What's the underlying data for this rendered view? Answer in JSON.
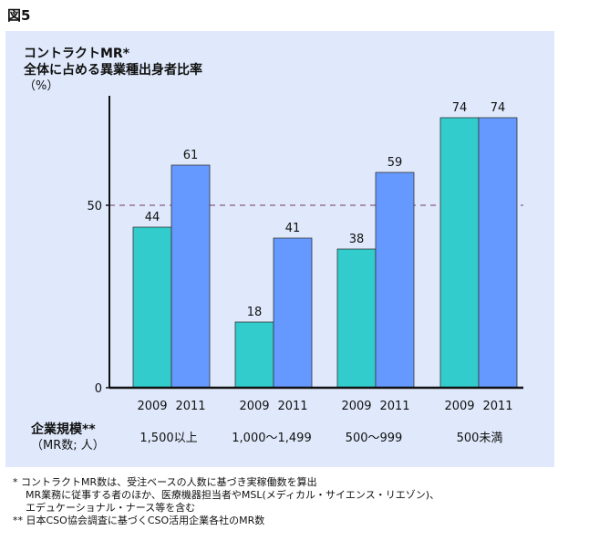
{
  "figure_label": "図5",
  "title": {
    "line1": "コントラクトMR*",
    "line2": "全体に占める異業種出身者比率",
    "unit": "（%）"
  },
  "chart_data": {
    "type": "bar",
    "categories": [
      "1,500以上",
      "1,000～1,499",
      "500～999",
      "500未満"
    ],
    "x_tick_labels": [
      "2009",
      "2011"
    ],
    "series": [
      {
        "name": "2009",
        "values": [
          44,
          18,
          38,
          74
        ]
      },
      {
        "name": "2011",
        "values": [
          61,
          41,
          59,
          74
        ]
      }
    ],
    "y_ticks": [
      0,
      50
    ],
    "ylim": [
      0,
      74
    ],
    "reference_line": 50,
    "colors": {
      "series_2009": "#33cccc",
      "series_2011": "#6699ff",
      "reference_line": "#8a5a8a"
    }
  },
  "x_axis": {
    "label": "企業規模**",
    "sublabel": "（MR数; 人）"
  },
  "footnotes": {
    "line1": "*  コントラクトMR数は、受注ベースの人数に基づき実稼働数を算出",
    "line2": "MR業務に従事する者のほか、医療機器担当者やMSL(メディカル・サイエンス・リエゾン)、",
    "line3": "エデュケーショナル・ナース等を含む",
    "line4": "** 日本CSO協会調査に基づくCSO活用企業各社のMR数"
  }
}
